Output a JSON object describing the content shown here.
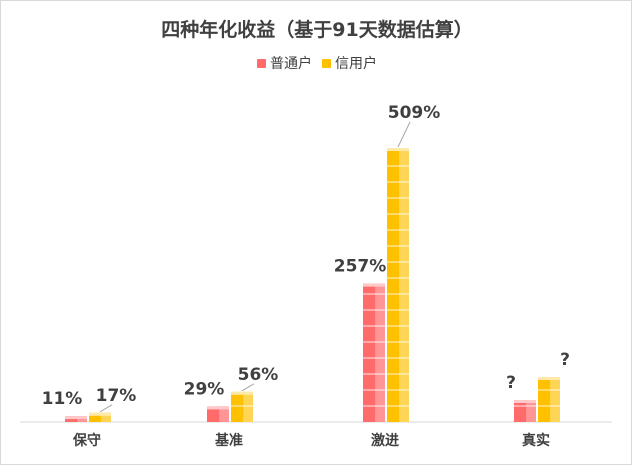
{
  "chart_data": {
    "type": "bar",
    "title": "四种年化收益（基于91天数据估算）",
    "categories": [
      "保守",
      "基准",
      "激进",
      "真实"
    ],
    "series": [
      {
        "name": "普通户",
        "values": [
          11,
          29,
          257,
          null
        ],
        "labels": [
          "11%",
          "29%",
          "257%",
          "?"
        ],
        "color": "#ff6b6b"
      },
      {
        "name": "信用户",
        "values": [
          17,
          56,
          509,
          null
        ],
        "labels": [
          "17%",
          "56%",
          "509%",
          "?"
        ],
        "color": "#ffc000"
      }
    ],
    "ylim": [
      0,
      560
    ],
    "grid": false,
    "legend": "top-center"
  }
}
